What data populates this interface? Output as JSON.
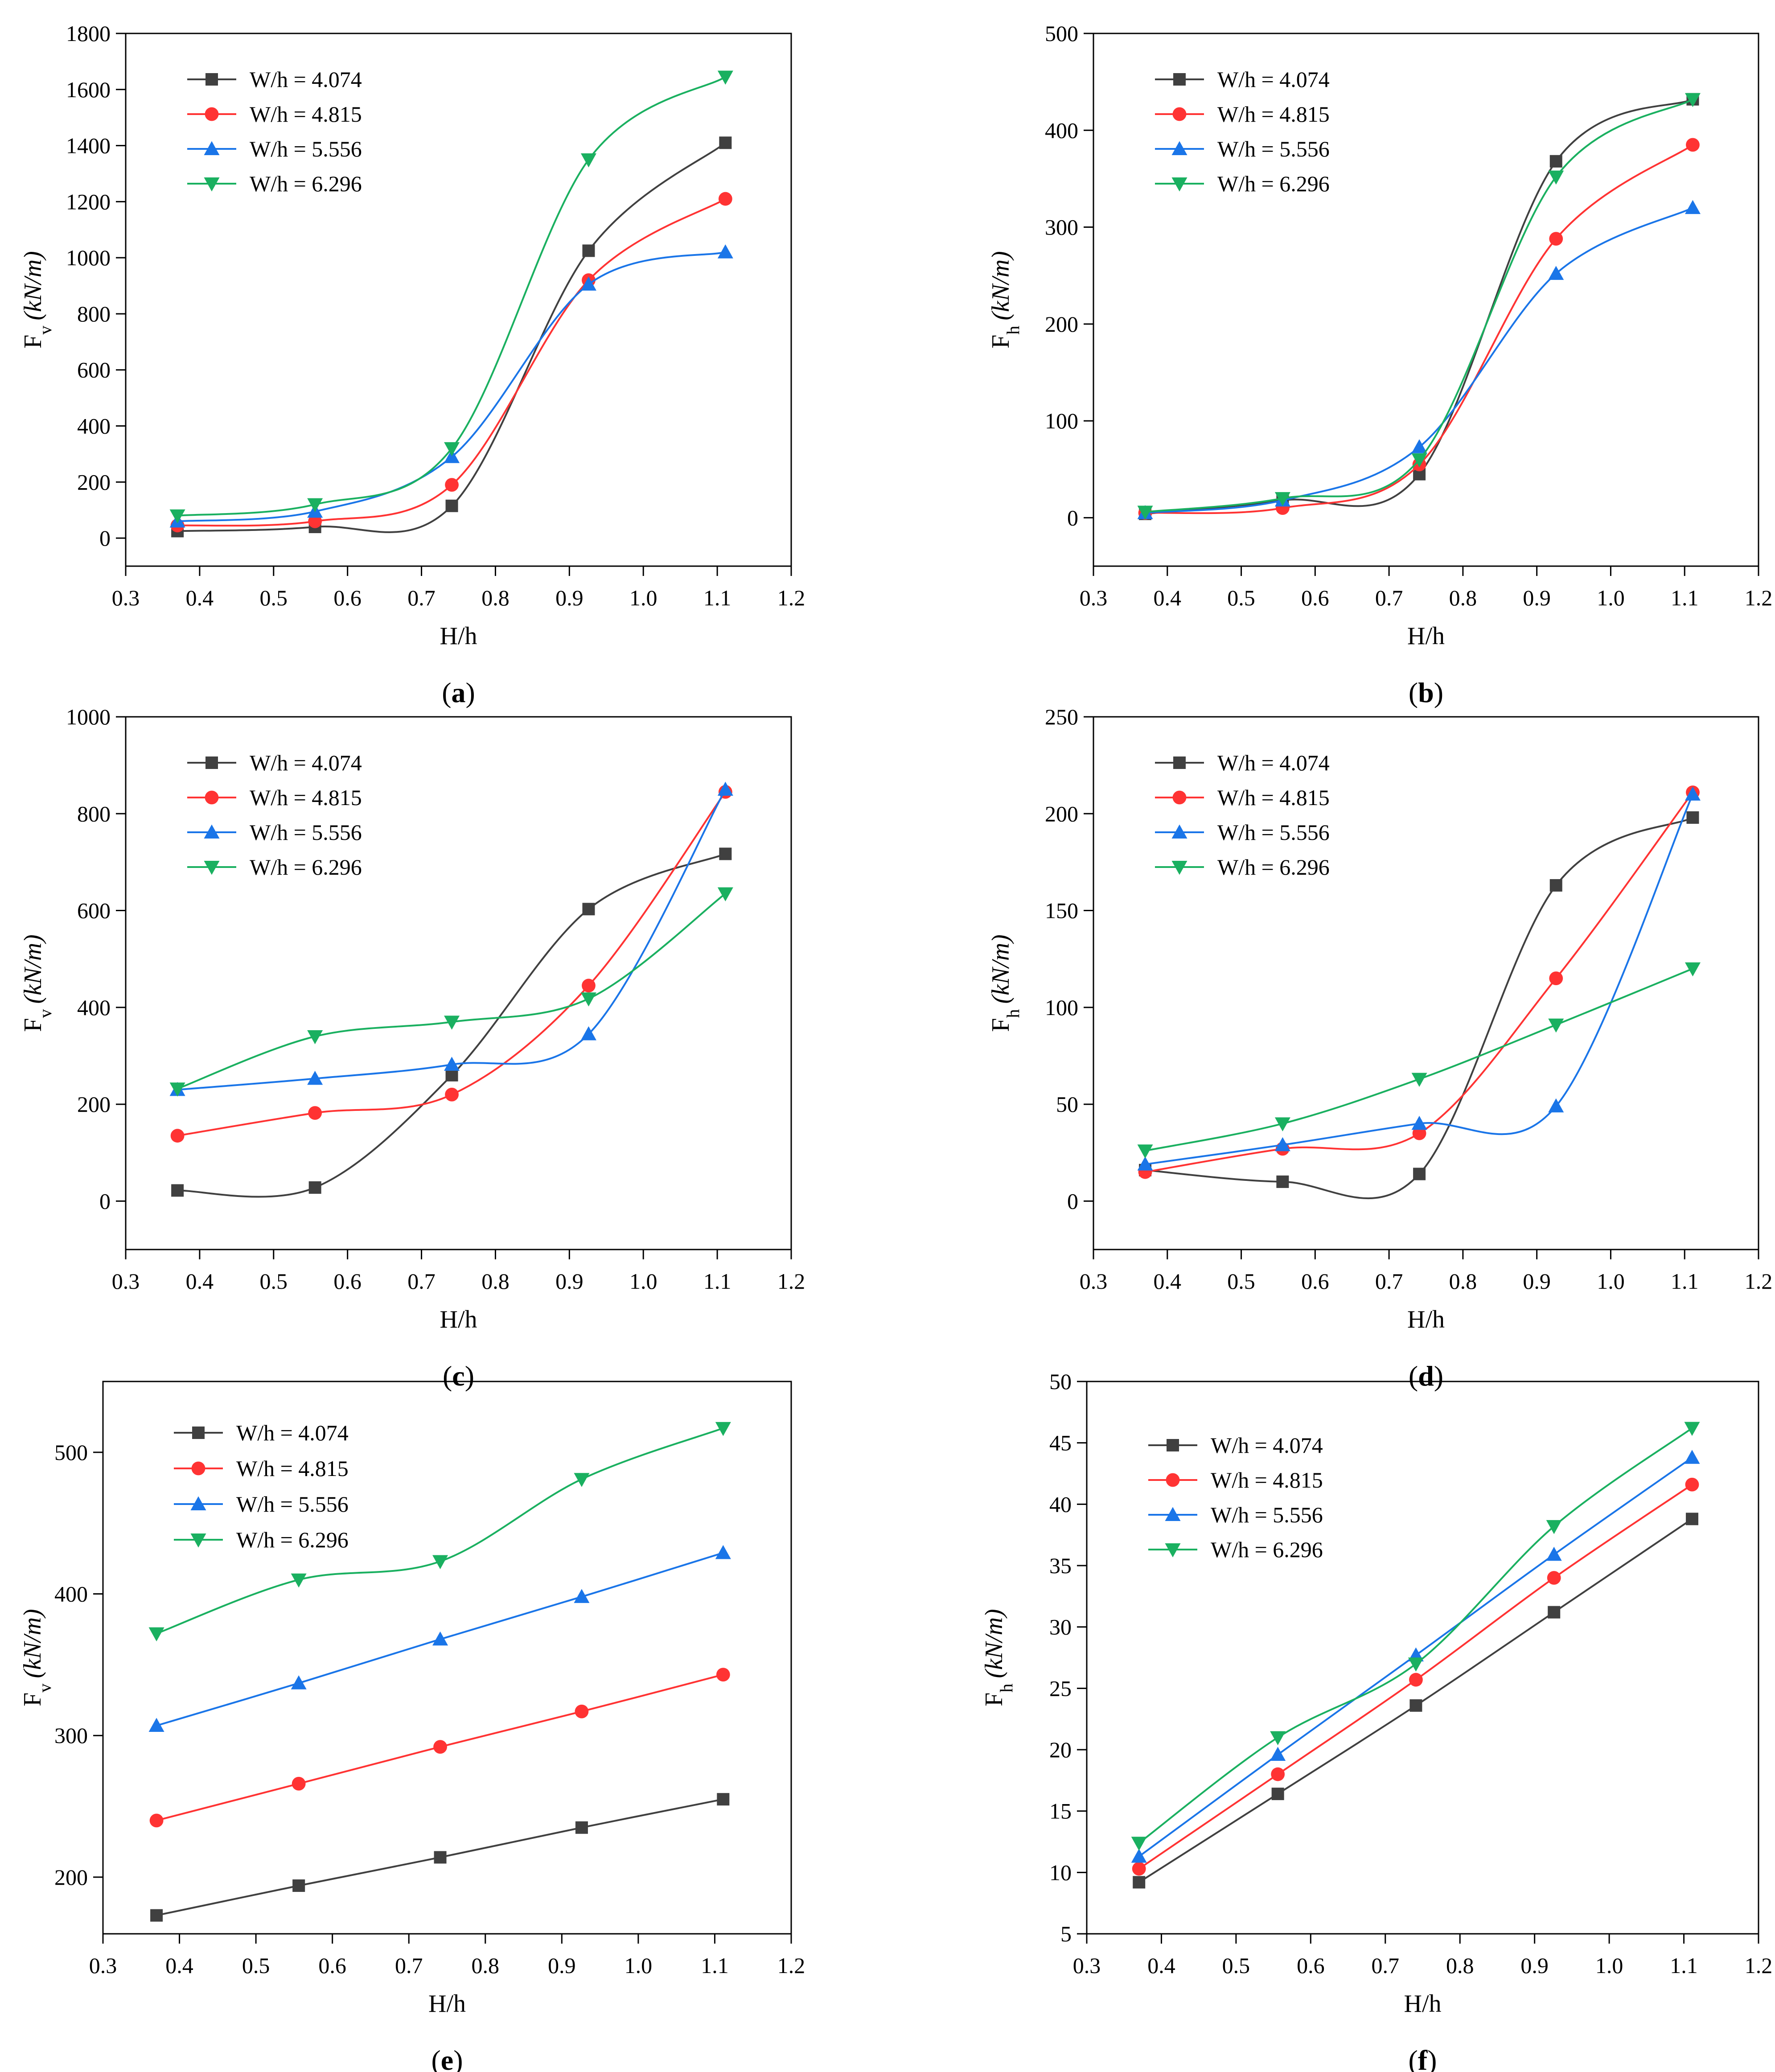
{
  "figure": {
    "series_styles": [
      {
        "color": "#404040",
        "marker": "square"
      },
      {
        "color": "#ff3333",
        "marker": "circle"
      },
      {
        "color": "#1a75e8",
        "marker": "triangle-up"
      },
      {
        "color": "#1ab060",
        "marker": "triangle-down"
      }
    ]
  },
  "chart_data": [
    {
      "type": "line",
      "panel_label": "a",
      "xlabel": "H/h",
      "ylabel_main": "F",
      "ylabel_sub": "v",
      "ylabel_unit": "(kN/m)",
      "xlim": [
        0.3,
        1.2
      ],
      "ylim": [
        -100,
        1800
      ],
      "xticks": [
        "0.3",
        "0.4",
        "0.5",
        "0.6",
        "0.7",
        "0.8",
        "0.9",
        "1.0",
        "1.1",
        "1.2"
      ],
      "yticks": [
        "0",
        "200",
        "400",
        "600",
        "800",
        "1000",
        "1200",
        "1400",
        "1600",
        "1800"
      ],
      "x": [
        0.37,
        0.556,
        0.741,
        0.926,
        1.111
      ],
      "series": [
        {
          "name": "W/h = 4.074",
          "values": [
            25,
            40,
            115,
            1025,
            1410
          ]
        },
        {
          "name": "W/h = 4.815",
          "values": [
            45,
            60,
            190,
            920,
            1210
          ]
        },
        {
          "name": "W/h = 5.556",
          "values": [
            60,
            95,
            290,
            905,
            1020
          ]
        },
        {
          "name": "W/h = 6.296",
          "values": [
            80,
            120,
            320,
            1350,
            1645
          ]
        }
      ]
    },
    {
      "type": "line",
      "panel_label": "b",
      "xlabel": "H/h",
      "ylabel_main": "F",
      "ylabel_sub": "h",
      "ylabel_unit": "(kN/m)",
      "xlim": [
        0.3,
        1.2
      ],
      "ylim": [
        -50,
        500
      ],
      "xticks": [
        "0.3",
        "0.4",
        "0.5",
        "0.6",
        "0.7",
        "0.8",
        "0.9",
        "1.0",
        "1.1",
        "1.2"
      ],
      "yticks": [
        "0",
        "100",
        "200",
        "300",
        "400",
        "500"
      ],
      "x": [
        0.37,
        0.556,
        0.741,
        0.926,
        1.111
      ],
      "series": [
        {
          "name": "W/h = 4.074",
          "values": [
            4,
            18,
            45,
            368,
            432
          ]
        },
        {
          "name": "W/h = 4.815",
          "values": [
            5,
            10,
            55,
            288,
            385
          ]
        },
        {
          "name": "W/h = 5.556",
          "values": [
            5,
            18,
            73,
            252,
            320
          ]
        },
        {
          "name": "W/h = 6.296",
          "values": [
            6,
            20,
            60,
            352,
            432
          ]
        }
      ]
    },
    {
      "type": "line",
      "panel_label": "c",
      "xlabel": "H/h",
      "ylabel_main": "F",
      "ylabel_sub": "v",
      "ylabel_unit": "(kN/m)",
      "xlim": [
        0.3,
        1.2
      ],
      "ylim": [
        -100,
        1000
      ],
      "xticks": [
        "0.3",
        "0.4",
        "0.5",
        "0.6",
        "0.7",
        "0.8",
        "0.9",
        "1.0",
        "1.1",
        "1.2"
      ],
      "yticks": [
        "0",
        "200",
        "400",
        "600",
        "800",
        "1000"
      ],
      "x": [
        0.37,
        0.556,
        0.741,
        0.926,
        1.111
      ],
      "series": [
        {
          "name": "W/h = 4.074",
          "values": [
            22,
            28,
            260,
            603,
            717
          ]
        },
        {
          "name": "W/h = 4.815",
          "values": [
            135,
            182,
            220,
            445,
            845
          ]
        },
        {
          "name": "W/h = 5.556",
          "values": [
            230,
            253,
            282,
            345,
            850
          ]
        },
        {
          "name": "W/h = 6.296",
          "values": [
            232,
            340,
            370,
            418,
            635
          ]
        }
      ]
    },
    {
      "type": "line",
      "panel_label": "d",
      "xlabel": "H/h",
      "ylabel_main": "F",
      "ylabel_sub": "h",
      "ylabel_unit": "(kN/m)",
      "xlim": [
        0.3,
        1.2
      ],
      "ylim": [
        -25,
        250
      ],
      "xticks": [
        "0.3",
        "0.4",
        "0.5",
        "0.6",
        "0.7",
        "0.8",
        "0.9",
        "1.0",
        "1.1",
        "1.2"
      ],
      "yticks": [
        "0",
        "50",
        "100",
        "150",
        "200",
        "250"
      ],
      "x": [
        0.37,
        0.556,
        0.741,
        0.926,
        1.111
      ],
      "series": [
        {
          "name": "W/h = 4.074",
          "values": [
            16,
            10,
            14,
            163,
            198
          ]
        },
        {
          "name": "W/h = 4.815",
          "values": [
            15,
            27,
            35,
            115,
            211
          ]
        },
        {
          "name": "W/h = 5.556",
          "values": [
            19,
            29,
            40,
            49,
            210
          ]
        },
        {
          "name": "W/h = 6.296",
          "values": [
            26,
            40,
            63,
            91,
            120
          ]
        }
      ]
    },
    {
      "type": "line",
      "panel_label": "e",
      "xlabel": "H/h",
      "ylabel_main": "F",
      "ylabel_sub": "v",
      "ylabel_unit": "(kN/m)",
      "xlim": [
        0.3,
        1.2
      ],
      "ylim": [
        160,
        550
      ],
      "xticks": [
        "0.3",
        "0.4",
        "0.5",
        "0.6",
        "0.7",
        "0.8",
        "0.9",
        "1.0",
        "1.1",
        "1.2"
      ],
      "yticks": [
        "200",
        "300",
        "400",
        "500"
      ],
      "x": [
        0.37,
        0.556,
        0.741,
        0.926,
        1.111
      ],
      "series": [
        {
          "name": "W/h = 4.074",
          "values": [
            173,
            194,
            214,
            235,
            255
          ]
        },
        {
          "name": "W/h = 4.815",
          "values": [
            240,
            266,
            292,
            317,
            343
          ]
        },
        {
          "name": "W/h = 5.556",
          "values": [
            307,
            337,
            368,
            398,
            429
          ]
        },
        {
          "name": "W/h = 6.296",
          "values": [
            372,
            410,
            423,
            481,
            517
          ]
        }
      ]
    },
    {
      "type": "line",
      "panel_label": "f",
      "xlabel": "H/h",
      "ylabel_main": "F",
      "ylabel_sub": "h",
      "ylabel_unit": "(kN/m)",
      "xlim": [
        0.3,
        1.2
      ],
      "ylim": [
        5,
        50
      ],
      "xticks": [
        "0.3",
        "0.4",
        "0.5",
        "0.6",
        "0.7",
        "0.8",
        "0.9",
        "1.0",
        "1.1",
        "1.2"
      ],
      "yticks": [
        "5",
        "10",
        "15",
        "20",
        "25",
        "30",
        "35",
        "40",
        "45",
        "50"
      ],
      "x": [
        0.37,
        0.556,
        0.741,
        0.926,
        1.111
      ],
      "series": [
        {
          "name": "W/h = 4.074",
          "values": [
            9.2,
            16.4,
            23.6,
            31.2,
            38.8
          ]
        },
        {
          "name": "W/h = 4.815",
          "values": [
            10.3,
            18.0,
            25.7,
            34.0,
            41.6
          ]
        },
        {
          "name": "W/h = 5.556",
          "values": [
            11.3,
            19.6,
            27.7,
            35.9,
            43.8
          ]
        },
        {
          "name": "W/h = 6.296",
          "values": [
            12.4,
            21.0,
            27.0,
            38.2,
            46.2
          ]
        }
      ]
    }
  ]
}
